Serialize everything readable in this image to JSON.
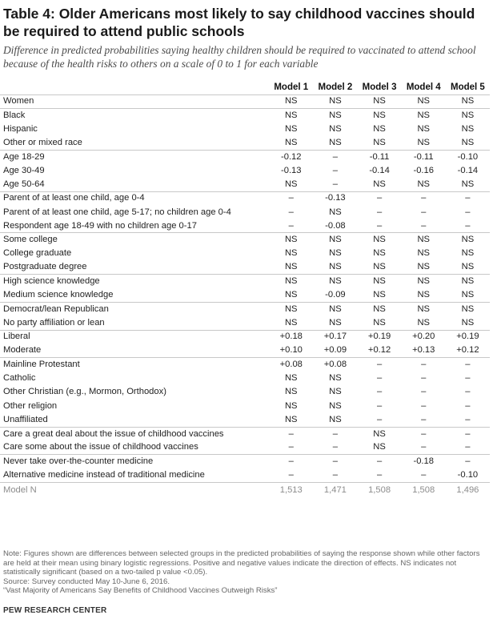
{
  "title": "Table 4: Older Americans most likely to say childhood vaccines should be required to attend public schools",
  "subtitle": "Difference in predicted probabilities saying healthy children should be required to vaccinated to attend school because of the health risks to others on a scale of 0 to 1 for each variable",
  "columns": [
    "Model 1",
    "Model 2",
    "Model 3",
    "Model 4",
    "Model 5"
  ],
  "groups": [
    [
      {
        "label": "Women",
        "values": [
          "NS",
          "NS",
          "NS",
          "NS",
          "NS"
        ]
      }
    ],
    [
      {
        "label": "Black",
        "values": [
          "NS",
          "NS",
          "NS",
          "NS",
          "NS"
        ]
      },
      {
        "label": "Hispanic",
        "values": [
          "NS",
          "NS",
          "NS",
          "NS",
          "NS"
        ]
      },
      {
        "label": "Other or mixed race",
        "values": [
          "NS",
          "NS",
          "NS",
          "NS",
          "NS"
        ]
      }
    ],
    [
      {
        "label": "Age 18-29",
        "values": [
          "-0.12",
          "–",
          "-0.11",
          "-0.11",
          "-0.10"
        ]
      },
      {
        "label": "Age 30-49",
        "values": [
          "-0.13",
          "–",
          "-0.14",
          "-0.16",
          "-0.14"
        ]
      },
      {
        "label": "Age 50-64",
        "values": [
          "NS",
          "–",
          "NS",
          "NS",
          "NS"
        ]
      }
    ],
    [
      {
        "label": "Parent of at least one child, age 0-4",
        "values": [
          "–",
          "-0.13",
          "–",
          "–",
          "–"
        ]
      },
      {
        "label": "Parent of at least one child, age 5-17; no children age 0-4",
        "values": [
          "–",
          "NS",
          "–",
          "–",
          "–"
        ]
      },
      {
        "label": "Respondent age 18-49 with no children age 0-17",
        "values": [
          "–",
          "-0.08",
          "–",
          "–",
          "–"
        ]
      }
    ],
    [
      {
        "label": "Some college",
        "values": [
          "NS",
          "NS",
          "NS",
          "NS",
          "NS"
        ]
      },
      {
        "label": "College graduate",
        "values": [
          "NS",
          "NS",
          "NS",
          "NS",
          "NS"
        ]
      },
      {
        "label": "Postgraduate degree",
        "values": [
          "NS",
          "NS",
          "NS",
          "NS",
          "NS"
        ]
      }
    ],
    [
      {
        "label": "High science knowledge",
        "values": [
          "NS",
          "NS",
          "NS",
          "NS",
          "NS"
        ]
      },
      {
        "label": "Medium science knowledge",
        "values": [
          "NS",
          "-0.09",
          "NS",
          "NS",
          "NS"
        ]
      }
    ],
    [
      {
        "label": "Democrat/lean Republican",
        "values": [
          "NS",
          "NS",
          "NS",
          "NS",
          "NS"
        ]
      },
      {
        "label": "No party affiliation or lean",
        "values": [
          "NS",
          "NS",
          "NS",
          "NS",
          "NS"
        ]
      }
    ],
    [
      {
        "label": "Liberal",
        "values": [
          "+0.18",
          "+0.17",
          "+0.19",
          "+0.20",
          "+0.19"
        ]
      },
      {
        "label": "Moderate",
        "values": [
          "+0.10",
          "+0.09",
          "+0.12",
          "+0.13",
          "+0.12"
        ]
      }
    ],
    [
      {
        "label": "Mainline Protestant",
        "values": [
          "+0.08",
          "+0.08",
          "–",
          "–",
          "–"
        ]
      },
      {
        "label": "Catholic",
        "values": [
          "NS",
          "NS",
          "–",
          "–",
          "–"
        ]
      },
      {
        "label": "Other Christian (e.g., Mormon, Orthodox)",
        "values": [
          "NS",
          "NS",
          "–",
          "–",
          "–"
        ]
      },
      {
        "label": "Other religion",
        "values": [
          "NS",
          "NS",
          "–",
          "–",
          "–"
        ]
      },
      {
        "label": "Unaffiliated",
        "values": [
          "NS",
          "NS",
          "–",
          "–",
          "–"
        ]
      }
    ],
    [
      {
        "label": "Care a great deal about the issue of childhood vaccines",
        "values": [
          "–",
          "–",
          "NS",
          "–",
          "–"
        ]
      },
      {
        "label": "Care some about the issue of childhood vaccines",
        "values": [
          "–",
          "–",
          "NS",
          "–",
          "–"
        ]
      }
    ],
    [
      {
        "label": "Never take over-the-counter medicine",
        "values": [
          "–",
          "–",
          "–",
          "-0.18",
          "–"
        ]
      },
      {
        "label": "Alternative medicine instead of traditional medicine",
        "values": [
          "–",
          "–",
          "–",
          "–",
          "-0.10"
        ]
      }
    ]
  ],
  "model_n": {
    "label": "Model N",
    "values": [
      "1,513",
      "1,471",
      "1,508",
      "1,508",
      "1,496"
    ]
  },
  "notes": [
    "Note: Figures shown are differences between selected groups in the predicted probabilities of saying the response shown while other factors are held at their mean using binary logistic regressions. Positive and negative values indicate the direction of effects. NS indicates not statistically significant (based on a two-tailed p value <0.05).",
    "Source: Survey conducted May 10-June 6, 2016.",
    "“Vast Majority of Americans Say Benefits of Childhood Vaccines Outweigh Risks”"
  ],
  "brand": "PEW RESEARCH CENTER"
}
